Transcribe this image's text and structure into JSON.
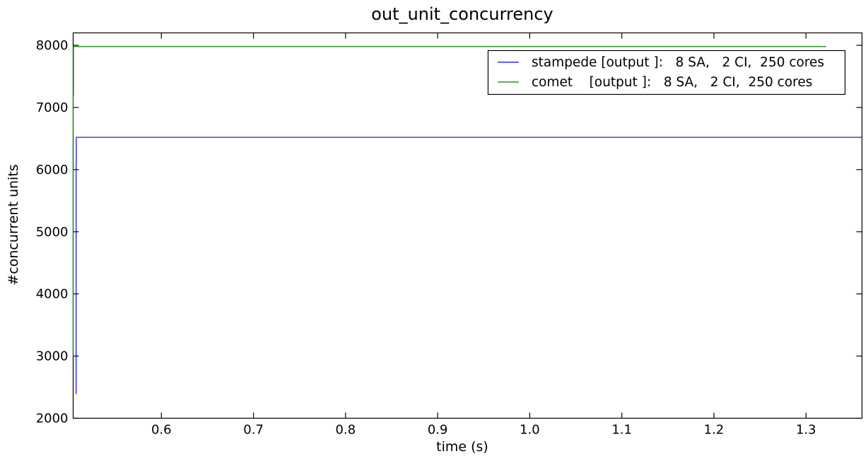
{
  "chart_data": {
    "type": "line",
    "title": "out_unit_concurrency",
    "xlabel": "time (s)",
    "ylabel": "#concurrent units",
    "xlim": [
      0.5042,
      1.3608
    ],
    "ylim": [
      2000,
      8200
    ],
    "x_ticks": [
      0.6,
      0.7,
      0.8,
      0.9,
      1.0,
      1.1,
      1.2,
      1.3
    ],
    "x_tick_labels": [
      "0.6",
      "0.7",
      "0.8",
      "0.9",
      "1.0",
      "1.1",
      "1.2",
      "1.3"
    ],
    "y_ticks": [
      2000,
      3000,
      4000,
      5000,
      6000,
      7000,
      8000
    ],
    "y_tick_labels": [
      "2000",
      "3000",
      "4000",
      "5000",
      "6000",
      "7000",
      "8000"
    ],
    "grid": false,
    "legend_position": "top-right",
    "series": [
      {
        "name": "stampede [output ]:   8 SA,   2 CI,  250 cores",
        "color": "#0000ff",
        "x": [
          0.5074,
          0.5074,
          0.5076,
          0.5076,
          1.3608
        ],
        "y": [
          2390,
          6100,
          6100,
          6520,
          6520
        ]
      },
      {
        "name": "comet    [output ]:   8 SA,   2 CI,  250 cores",
        "color": "#008000",
        "x": [
          0.5042,
          0.5042,
          0.5045,
          0.5045,
          1.3219
        ],
        "y": [
          2990,
          7200,
          7200,
          7980,
          7980
        ]
      }
    ]
  }
}
